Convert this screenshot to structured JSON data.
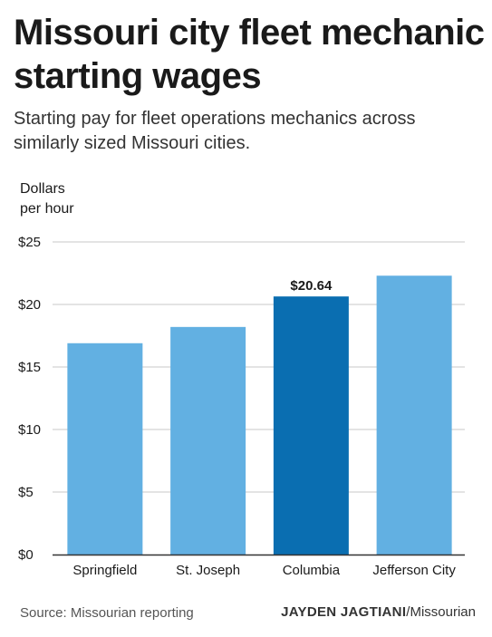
{
  "title": "Missouri city fleet mechanic starting wages",
  "subtitle": "Starting pay for fleet operations mechanics across similarly sized Missouri cities.",
  "unit_label_line1": "Dollars",
  "unit_label_line2": "per hour",
  "source": "Source: Missourian reporting",
  "credit": {
    "name": "JAYDEN JAGTIANI",
    "org": "/Missourian"
  },
  "colors": {
    "bar": "#62b0e2",
    "highlight": "#0a6eb1",
    "grid": "#c8c8c8",
    "axis": "#333333"
  },
  "chart_data": {
    "type": "bar",
    "categories": [
      "Springfield",
      "St. Joseph",
      "Columbia",
      "Jefferson City"
    ],
    "values": [
      16.9,
      18.2,
      20.64,
      22.3
    ],
    "highlight_category": "Columbia",
    "data_labels": [
      {
        "category": "Columbia",
        "text": "$20.64"
      }
    ],
    "ylabel": "Dollars per hour",
    "ylim": [
      0,
      25
    ],
    "yticks": [
      0,
      5,
      10,
      15,
      20,
      25
    ],
    "ytick_labels": [
      "$0",
      "$5",
      "$10",
      "$15",
      "$20",
      "$25"
    ],
    "grid": true
  }
}
